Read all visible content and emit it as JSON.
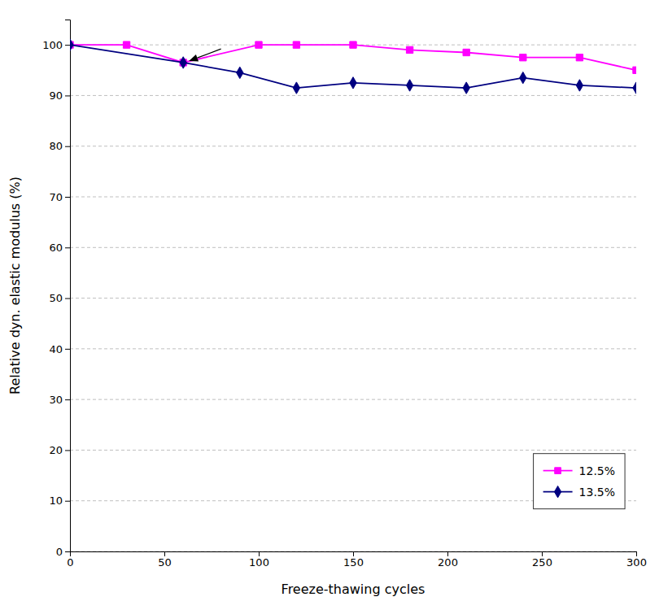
{
  "chart_data": {
    "type": "line",
    "x_label": "Freeze-thawing cycles",
    "y_label": "Relative dyn. elastic modulus (%)",
    "series": [
      {
        "name": "12.5%",
        "color": "#FF00FF",
        "marker": "square",
        "x": [
          0,
          30,
          60,
          100,
          120,
          150,
          180,
          210,
          240,
          270,
          300
        ],
        "values": [
          100,
          100,
          96.5,
          100,
          100,
          100,
          99,
          98.5,
          97.5,
          97.5,
          95
        ]
      },
      {
        "name": "13.5%",
        "color": "#000080",
        "marker": "diamond",
        "x": [
          0,
          60,
          90,
          120,
          150,
          180,
          210,
          240,
          270,
          300
        ],
        "values": [
          100,
          96.5,
          94.5,
          91.5,
          92.5,
          92.0,
          91.5,
          93.5,
          92.0,
          91.5
        ]
      }
    ],
    "annotations": [
      {
        "from": [
          80,
          99.2
        ],
        "to": [
          63,
          96.8
        ]
      }
    ],
    "xlim": [
      0,
      300
    ],
    "ylim": [
      0,
      105
    ],
    "xticks": [
      0,
      50,
      100,
      150,
      200,
      250,
      300
    ],
    "yticks": [
      0,
      10,
      20,
      30,
      40,
      50,
      60,
      70,
      80,
      90,
      100
    ],
    "grid": "y",
    "legend": "lower right"
  }
}
